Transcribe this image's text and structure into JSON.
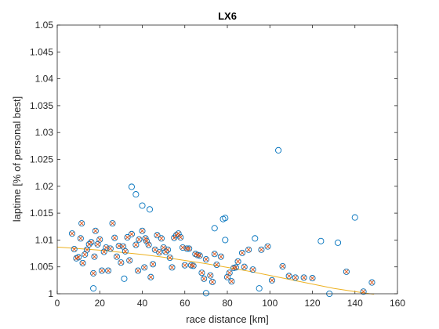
{
  "chart_data": {
    "type": "scatter",
    "title": "LX6",
    "xlabel": "race distance [km]",
    "ylabel": "laptime [% of personal best]",
    "xlim": [
      0,
      160
    ],
    "ylim": [
      1,
      1.05
    ],
    "xticks": [
      0,
      20,
      40,
      60,
      80,
      100,
      120,
      140,
      160
    ],
    "yticks": [
      1,
      1.005,
      1.01,
      1.015,
      1.02,
      1.025,
      1.03,
      1.035,
      1.04,
      1.045,
      1.05
    ],
    "xtick_labels": [
      "0",
      "20",
      "40",
      "60",
      "80",
      "100",
      "120",
      "140",
      "160"
    ],
    "ytick_labels": [
      "1",
      "1.005",
      "1.01",
      "1.015",
      "1.02",
      "1.025",
      "1.03",
      "1.035",
      "1.04",
      "1.045",
      "1.05"
    ],
    "grid": false,
    "colors": {
      "circles": "#0072BD",
      "crosses": "#D95319",
      "trend": "#EDB120",
      "axes": "#262626"
    },
    "series": [
      {
        "marker": "circle",
        "points": [
          [
            7,
            1.0112
          ],
          [
            8,
            1.0083
          ],
          [
            9,
            1.0066
          ],
          [
            10,
            1.0068
          ],
          [
            11,
            1.0103
          ],
          [
            11.5,
            1.0131
          ],
          [
            12,
            1.0057
          ],
          [
            13,
            1.0073
          ],
          [
            14,
            1.0082
          ],
          [
            15,
            1.0092
          ],
          [
            16,
            1.0096
          ],
          [
            17,
            1.0038
          ],
          [
            17.5,
            1.0069
          ],
          [
            17,
            1.001
          ],
          [
            18,
            1.0117
          ],
          [
            19,
            1.0092
          ],
          [
            20,
            1.0101
          ],
          [
            21,
            1.0043
          ],
          [
            22,
            1.0078
          ],
          [
            23,
            1.0086
          ],
          [
            24,
            1.0043
          ],
          [
            25,
            1.0084
          ],
          [
            26,
            1.0131
          ],
          [
            27,
            1.0104
          ],
          [
            28,
            1.0069
          ],
          [
            29,
            1.0089
          ],
          [
            30,
            1.0058
          ],
          [
            31,
            1.0088
          ],
          [
            31.5,
            1.0028
          ],
          [
            32,
            1.0079
          ],
          [
            33,
            1.0105
          ],
          [
            34,
            1.0062
          ],
          [
            35,
            1.0111
          ],
          [
            35,
            1.0199
          ],
          [
            37,
            1.0185
          ],
          [
            37,
            1.0091
          ],
          [
            38,
            1.0043
          ],
          [
            38.5,
            1.0101
          ],
          [
            40,
            1.0117
          ],
          [
            40,
            1.0164
          ],
          [
            41,
            1.0049
          ],
          [
            41.5,
            1.0103
          ],
          [
            42,
            1.0098
          ],
          [
            43,
            1.0091
          ],
          [
            43.5,
            1.0157
          ],
          [
            44,
            1.0031
          ],
          [
            45,
            1.0055
          ],
          [
            46,
            1.0082
          ],
          [
            47,
            1.0109
          ],
          [
            48,
            1.0077
          ],
          [
            49,
            1.0103
          ],
          [
            50,
            1.0086
          ],
          [
            51,
            1.0078
          ],
          [
            52,
            1.0082
          ],
          [
            53,
            1.0067
          ],
          [
            54,
            1.0049
          ],
          [
            55,
            1.0104
          ],
          [
            56,
            1.0109
          ],
          [
            57,
            1.0112
          ],
          [
            58,
            1.0105
          ],
          [
            59,
            1.0086
          ],
          [
            60,
            1.0053
          ],
          [
            61,
            1.0084
          ],
          [
            62,
            1.0084
          ],
          [
            63,
            1.0053
          ],
          [
            64,
            1.0052
          ],
          [
            65,
            1.0074
          ],
          [
            66,
            1.0072
          ],
          [
            67,
            1.0071
          ],
          [
            68,
            1.0039
          ],
          [
            69,
            1.0028
          ],
          [
            70,
            1.0064
          ],
          [
            70,
            1.0001
          ],
          [
            72,
            1.0034
          ],
          [
            73,
            1.0022
          ],
          [
            74,
            1.0122
          ],
          [
            74,
            1.0074
          ],
          [
            75,
            1.0054
          ],
          [
            77,
            1.0069
          ],
          [
            78,
            1.0139
          ],
          [
            79,
            1.0141
          ],
          [
            79,
            1.01
          ],
          [
            80,
            1.0031
          ],
          [
            81,
            1.0039
          ],
          [
            82,
            1.0023
          ],
          [
            83,
            1.0048
          ],
          [
            84,
            1.0049
          ],
          [
            85,
            1.006
          ],
          [
            87,
            1.0076
          ],
          [
            88,
            1.005
          ],
          [
            90,
            1.0082
          ],
          [
            92,
            1.0045
          ],
          [
            93,
            1.0103
          ],
          [
            95,
            1.001
          ],
          [
            96,
            1.0082
          ],
          [
            99,
            1.0088
          ],
          [
            101,
            1.0025
          ],
          [
            104,
            1.0267
          ],
          [
            106,
            1.0051
          ],
          [
            109,
            1.0033
          ],
          [
            112,
            1.003
          ],
          [
            116,
            1.003
          ],
          [
            120,
            1.0029
          ],
          [
            124,
            1.0098
          ],
          [
            128,
            1.0
          ],
          [
            132,
            1.0095
          ],
          [
            136,
            1.0041
          ],
          [
            140,
            1.0142
          ],
          [
            144,
            1.0004
          ],
          [
            148,
            1.0021
          ]
        ]
      },
      {
        "marker": "x",
        "points": [
          [
            7,
            1.0112
          ],
          [
            8,
            1.0083
          ],
          [
            9,
            1.0066
          ],
          [
            10,
            1.0068
          ],
          [
            11,
            1.0103
          ],
          [
            11.5,
            1.0131
          ],
          [
            12,
            1.0057
          ],
          [
            13,
            1.0073
          ],
          [
            14,
            1.0082
          ],
          [
            15,
            1.0092
          ],
          [
            16,
            1.0096
          ],
          [
            17,
            1.0038
          ],
          [
            17.5,
            1.0069
          ],
          [
            18,
            1.0117
          ],
          [
            19,
            1.0092
          ],
          [
            20,
            1.0101
          ],
          [
            21,
            1.0043
          ],
          [
            22,
            1.0078
          ],
          [
            23,
            1.0086
          ],
          [
            24,
            1.0043
          ],
          [
            25,
            1.0084
          ],
          [
            26,
            1.0131
          ],
          [
            27,
            1.0104
          ],
          [
            28,
            1.0069
          ],
          [
            29,
            1.0089
          ],
          [
            30,
            1.0058
          ],
          [
            31,
            1.0088
          ],
          [
            32,
            1.0079
          ],
          [
            33,
            1.0105
          ],
          [
            34,
            1.0062
          ],
          [
            35,
            1.0111
          ],
          [
            37,
            1.0091
          ],
          [
            38,
            1.0043
          ],
          [
            38.5,
            1.0101
          ],
          [
            40,
            1.0117
          ],
          [
            41,
            1.0049
          ],
          [
            41.5,
            1.0103
          ],
          [
            42,
            1.0098
          ],
          [
            43,
            1.0091
          ],
          [
            44,
            1.0031
          ],
          [
            45,
            1.0055
          ],
          [
            46,
            1.0082
          ],
          [
            47,
            1.0109
          ],
          [
            48,
            1.0077
          ],
          [
            49,
            1.0103
          ],
          [
            50,
            1.0086
          ],
          [
            51,
            1.0078
          ],
          [
            52,
            1.0082
          ],
          [
            53,
            1.0067
          ],
          [
            54,
            1.0049
          ],
          [
            55,
            1.0104
          ],
          [
            56,
            1.0109
          ],
          [
            57,
            1.0112
          ],
          [
            58,
            1.0105
          ],
          [
            59,
            1.0086
          ],
          [
            60,
            1.0053
          ],
          [
            61,
            1.0084
          ],
          [
            62,
            1.0084
          ],
          [
            63,
            1.0053
          ],
          [
            64,
            1.0052
          ],
          [
            65,
            1.0074
          ],
          [
            66,
            1.0072
          ],
          [
            67,
            1.0071
          ],
          [
            68,
            1.0039
          ],
          [
            69,
            1.0028
          ],
          [
            70,
            1.0064
          ],
          [
            72,
            1.0034
          ],
          [
            73,
            1.0022
          ],
          [
            74,
            1.0074
          ],
          [
            75,
            1.0054
          ],
          [
            77,
            1.0069
          ],
          [
            80,
            1.0031
          ],
          [
            81,
            1.0039
          ],
          [
            82,
            1.0023
          ],
          [
            83,
            1.0048
          ],
          [
            84,
            1.0049
          ],
          [
            85,
            1.006
          ],
          [
            87,
            1.0076
          ],
          [
            88,
            1.005
          ],
          [
            90,
            1.0082
          ],
          [
            92,
            1.0045
          ],
          [
            96,
            1.0082
          ],
          [
            99,
            1.0088
          ],
          [
            101,
            1.0025
          ],
          [
            106,
            1.0051
          ],
          [
            109,
            1.0033
          ],
          [
            112,
            1.003
          ],
          [
            116,
            1.003
          ],
          [
            120,
            1.0029
          ],
          [
            136,
            1.0041
          ],
          [
            144,
            1.0004
          ],
          [
            148,
            1.0021
          ]
        ]
      },
      {
        "marker": "line",
        "points": [
          [
            0,
            1.0087
          ],
          [
            10,
            1.0084
          ],
          [
            20,
            1.0081
          ],
          [
            30,
            1.0077
          ],
          [
            40,
            1.0073
          ],
          [
            50,
            1.0068
          ],
          [
            60,
            1.0062
          ],
          [
            70,
            1.0056
          ],
          [
            80,
            1.0049
          ],
          [
            90,
            1.0042
          ],
          [
            100,
            1.0034
          ],
          [
            110,
            1.0026
          ],
          [
            120,
            1.0018
          ],
          [
            130,
            1.001
          ],
          [
            140,
            1.0004
          ],
          [
            149,
            0.9999
          ]
        ]
      }
    ]
  }
}
